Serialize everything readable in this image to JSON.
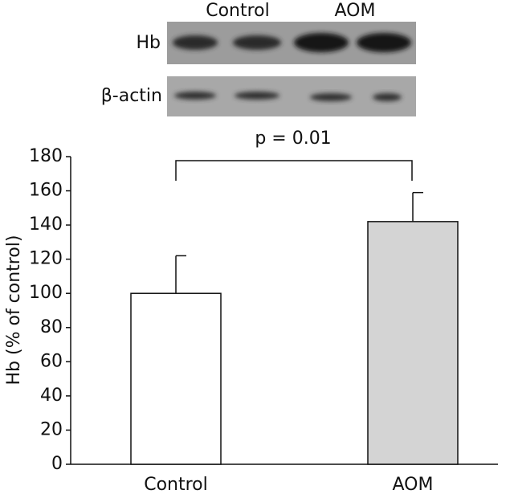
{
  "chart_data": {
    "type": "bar",
    "y_label": "Hb (% of control)",
    "categories": [
      "Control",
      "AOM"
    ],
    "values": [
      100,
      142
    ],
    "errors": [
      22,
      17
    ],
    "colors": [
      "#ffffff",
      "#d4d4d4"
    ],
    "ylim": [
      0,
      180
    ],
    "yticks": [
      0,
      20,
      40,
      60,
      80,
      100,
      120,
      140,
      160,
      180
    ],
    "annotation": "p = 0.01",
    "blot": {
      "lanes": [
        "Control",
        "AOM"
      ],
      "rows": [
        "Hb",
        "β-actin"
      ]
    }
  }
}
